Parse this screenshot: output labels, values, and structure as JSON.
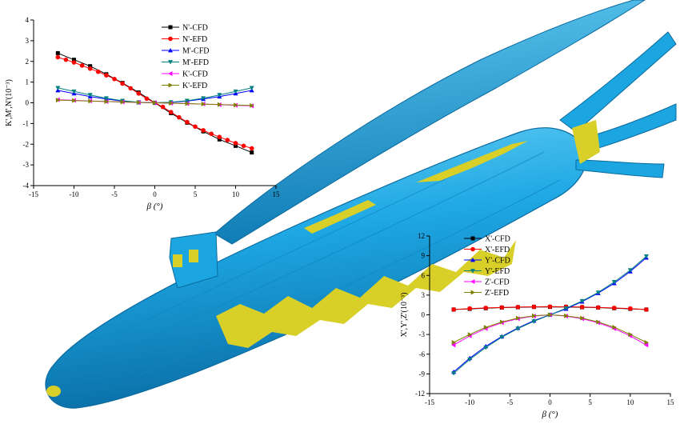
{
  "colors": {
    "hull": "#1aa6e3",
    "hull_dark": "#0b6fa6",
    "hull_light": "#69cdf3",
    "iso": "#d8cf28"
  },
  "chart_data": [
    {
      "type": "line",
      "xlabel": "β (°)",
      "ylabel": "K',M',N'(10⁻³)",
      "xlim": [
        -15,
        15
      ],
      "ylim": [
        -4,
        4
      ],
      "xticks": [
        -15,
        -10,
        -5,
        0,
        5,
        10,
        15
      ],
      "yticks": [
        -4,
        -3,
        -2,
        -1,
        0,
        1,
        2,
        3,
        4
      ],
      "legend": "top-center",
      "series": [
        {
          "name": "N'-CFD",
          "color": "#000000",
          "marker": "square",
          "x": [
            -12,
            -10,
            -8,
            -6,
            -4,
            -2,
            0,
            2,
            4,
            6,
            8,
            10,
            12
          ],
          "y": [
            2.4,
            2.08,
            1.77,
            1.38,
            0.96,
            0.5,
            0.0,
            -0.5,
            -0.96,
            -1.38,
            -1.77,
            -2.08,
            -2.4
          ]
        },
        {
          "name": "N'-EFD",
          "color": "#ff0000",
          "marker": "circle",
          "x": [
            -12,
            -11,
            -10,
            -9,
            -8,
            -7,
            -6,
            -5,
            -4,
            -3,
            -2,
            -1,
            0,
            1,
            2,
            3,
            4,
            5,
            6,
            7,
            8,
            9,
            10,
            11,
            12
          ],
          "y": [
            2.2,
            2.08,
            1.95,
            1.8,
            1.65,
            1.5,
            1.33,
            1.15,
            0.93,
            0.7,
            0.45,
            0.2,
            0.0,
            -0.2,
            -0.45,
            -0.7,
            -0.93,
            -1.15,
            -1.33,
            -1.5,
            -1.65,
            -1.8,
            -1.95,
            -2.08,
            -2.2
          ]
        },
        {
          "name": "M'-CFD",
          "color": "#0000ff",
          "marker": "triangle",
          "x": [
            -12,
            -10,
            -8,
            -6,
            -4,
            -2,
            0,
            2,
            4,
            6,
            8,
            10,
            12
          ],
          "y": [
            0.6,
            0.45,
            0.3,
            0.18,
            0.08,
            0.02,
            0.0,
            0.02,
            0.08,
            0.18,
            0.3,
            0.45,
            0.6
          ]
        },
        {
          "name": "M'-EFD",
          "color": "#008080",
          "marker": "triangle-down",
          "x": [
            -12,
            -10,
            -8,
            -6,
            -4,
            -2,
            0,
            2,
            4,
            6,
            8,
            10,
            12
          ],
          "y": [
            0.72,
            0.55,
            0.38,
            0.22,
            0.1,
            0.03,
            0.0,
            0.03,
            0.1,
            0.22,
            0.38,
            0.55,
            0.72
          ]
        },
        {
          "name": "K'-CFD",
          "color": "#ff00ff",
          "marker": "triangle-left",
          "x": [
            -12,
            -10,
            -8,
            -6,
            -4,
            -2,
            0,
            2,
            4,
            6,
            8,
            10,
            12
          ],
          "y": [
            0.15,
            0.12,
            0.09,
            0.06,
            0.04,
            0.02,
            0.0,
            -0.02,
            -0.04,
            -0.06,
            -0.09,
            -0.12,
            -0.15
          ]
        },
        {
          "name": "K'-EFD",
          "color": "#808000",
          "marker": "triangle-right",
          "x": [
            -12,
            -10,
            -8,
            -6,
            -4,
            -2,
            0,
            2,
            4,
            6,
            8,
            10,
            12
          ],
          "y": [
            0.13,
            0.11,
            0.08,
            0.06,
            0.04,
            0.02,
            0.0,
            -0.02,
            -0.04,
            -0.06,
            -0.08,
            -0.11,
            -0.13
          ]
        }
      ]
    },
    {
      "type": "line",
      "xlabel": "β (°)",
      "ylabel": "X',Y',Z'(10⁻³)",
      "xlim": [
        -15,
        15
      ],
      "ylim": [
        -12,
        12
      ],
      "xticks": [
        -15,
        -10,
        -5,
        0,
        5,
        10,
        15
      ],
      "yticks": [
        -12,
        -9,
        -6,
        -3,
        0,
        3,
        6,
        9,
        12
      ],
      "legend": "top-center",
      "series": [
        {
          "name": "X'-CFD",
          "color": "#000000",
          "marker": "square",
          "x": [
            -12,
            -10,
            -8,
            -6,
            -4,
            -2,
            0,
            2,
            4,
            6,
            8,
            10,
            12
          ],
          "y": [
            0.8,
            0.9,
            1.0,
            1.1,
            1.15,
            1.2,
            1.2,
            1.2,
            1.15,
            1.1,
            1.0,
            0.9,
            0.8
          ]
        },
        {
          "name": "X'-EFD",
          "color": "#ff0000",
          "marker": "circle",
          "x": [
            -12,
            -10,
            -8,
            -6,
            -4,
            -2,
            0,
            2,
            4,
            6,
            8,
            10,
            12
          ],
          "y": [
            0.8,
            0.95,
            1.05,
            1.12,
            1.18,
            1.22,
            1.25,
            1.22,
            1.18,
            1.12,
            1.05,
            0.95,
            0.8
          ]
        },
        {
          "name": "Y'-CFD",
          "color": "#0000ff",
          "marker": "triangle",
          "x": [
            -12,
            -10,
            -8,
            -6,
            -4,
            -2,
            0,
            2,
            4,
            6,
            8,
            10,
            12
          ],
          "y": [
            -8.7,
            -6.6,
            -4.8,
            -3.3,
            -2.0,
            -0.9,
            0.0,
            0.9,
            2.0,
            3.3,
            4.8,
            6.6,
            8.7
          ]
        },
        {
          "name": "Y'-EFD",
          "color": "#008080",
          "marker": "triangle-down",
          "x": [
            -12,
            -10,
            -8,
            -6,
            -4,
            -2,
            0,
            2,
            4,
            6,
            8,
            10,
            12
          ],
          "y": [
            -8.9,
            -6.8,
            -5.0,
            -3.4,
            -2.1,
            -1.0,
            0.0,
            1.0,
            2.1,
            3.4,
            5.0,
            6.8,
            8.9
          ]
        },
        {
          "name": "Z'-CFD",
          "color": "#ff00ff",
          "marker": "triangle-left",
          "x": [
            -12,
            -10,
            -8,
            -6,
            -4,
            -2,
            0,
            2,
            4,
            6,
            8,
            10,
            12
          ],
          "y": [
            -4.6,
            -3.2,
            -2.1,
            -1.2,
            -0.6,
            -0.2,
            0.0,
            -0.2,
            -0.6,
            -1.2,
            -2.1,
            -3.2,
            -4.6
          ]
        },
        {
          "name": "Z'-EFD",
          "color": "#808000",
          "marker": "triangle-right",
          "x": [
            -12,
            -10,
            -8,
            -6,
            -4,
            -2,
            0,
            2,
            4,
            6,
            8,
            10,
            12
          ],
          "y": [
            -4.2,
            -3.0,
            -1.9,
            -1.1,
            -0.5,
            -0.15,
            0.0,
            -0.15,
            -0.5,
            -1.1,
            -1.9,
            -3.0,
            -4.2
          ]
        }
      ]
    }
  ]
}
